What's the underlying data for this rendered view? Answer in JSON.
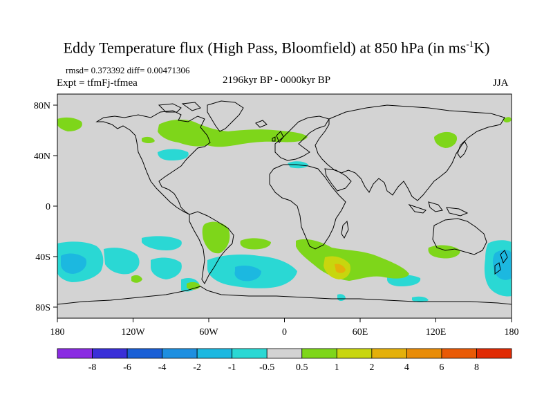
{
  "figure": {
    "title": "Eddy Temperature flux (High Pass, Bloomfield) at 850 hPa (in ms",
    "title_unit_exp": "-1",
    "title_unit_tail": "K)",
    "stats": "rmsd= 0.373392 diff= 0.00471306",
    "expt": "Expt = tfmFj-tfmea",
    "period": "2196kyr BP - 0000kyr BP",
    "season": "JJA"
  },
  "axes": {
    "lon_ticks": [
      "180",
      "120W",
      "60W",
      "0",
      "60E",
      "120E",
      "180"
    ],
    "lat_ticks": [
      "80N",
      "40N",
      "0",
      "40S",
      "80S"
    ]
  },
  "colorbar": {
    "labels": [
      "-8",
      "-6",
      "-4",
      "-2",
      "-1",
      "-0.5",
      "0.5",
      "1",
      "2",
      "4",
      "6",
      "8"
    ],
    "colors": [
      "#8a2be2",
      "#3a2fd8",
      "#1a5fd6",
      "#1e8fe0",
      "#1cb8e0",
      "#2ad8d4",
      "#d3d3d3",
      "#7ed61a",
      "#c8d60e",
      "#e4b00a",
      "#e88c08",
      "#e85a06",
      "#e02a04"
    ]
  },
  "map": {
    "background_color": "#d3d3d3",
    "coastline_color": "#000000"
  }
}
